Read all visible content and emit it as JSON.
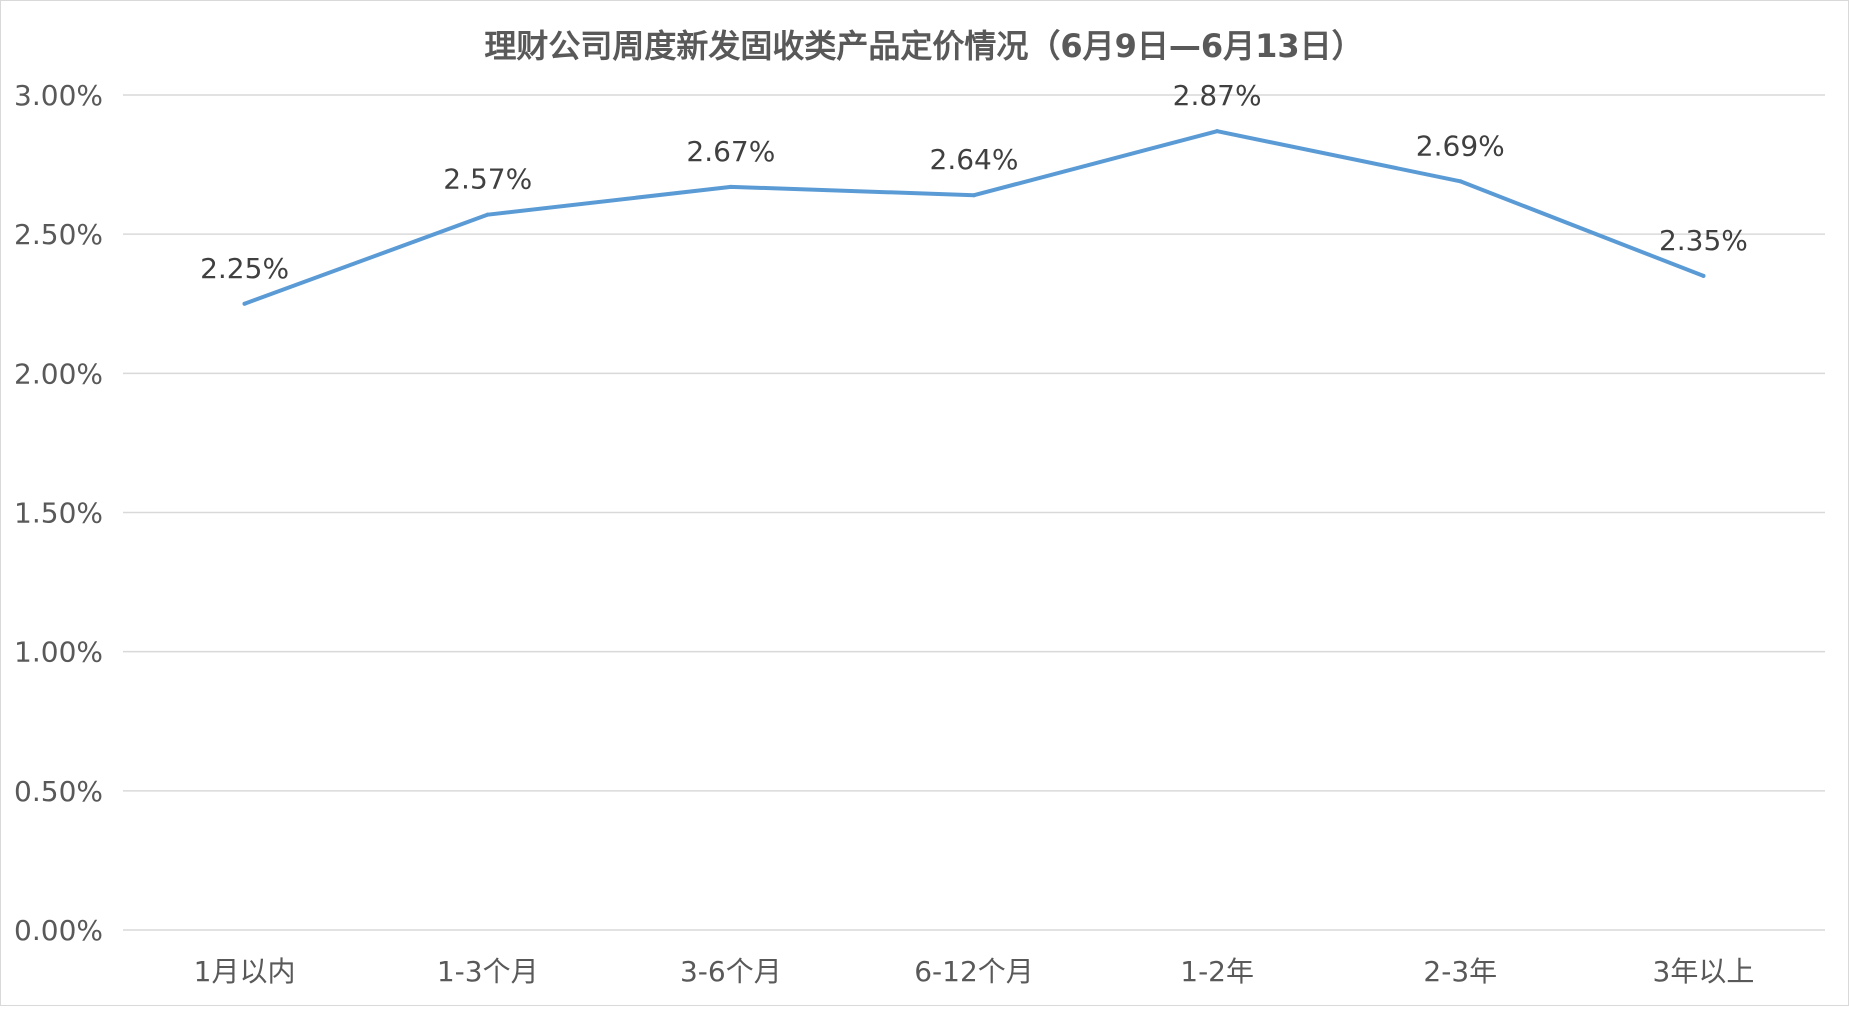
{
  "chart_data": {
    "type": "line",
    "title": "理财公司周度新发固收类产品定价情况（6月9日—6月13日）",
    "xlabel": "",
    "ylabel": "",
    "categories": [
      "1月以内",
      "1-3个月",
      "3-6个月",
      "6-12个月",
      "1-2年",
      "2-3年",
      "3年以上"
    ],
    "series": [
      {
        "values": [
          2.25,
          2.57,
          2.67,
          2.64,
          2.87,
          2.69,
          2.35
        ],
        "color": "#5b9bd5"
      }
    ],
    "data_labels": [
      "2.25%",
      "2.57%",
      "2.67%",
      "2.64%",
      "2.87%",
      "2.69%",
      "2.35%"
    ],
    "ylim": [
      0,
      3
    ],
    "y_ticks": [
      0,
      0.5,
      1,
      1.5,
      2,
      2.5,
      3
    ],
    "y_tick_labels": [
      "0.00%",
      "0.50%",
      "1.00%",
      "1.50%",
      "2.00%",
      "2.50%",
      "3.00%"
    ],
    "grid": true,
    "legend": "none"
  }
}
